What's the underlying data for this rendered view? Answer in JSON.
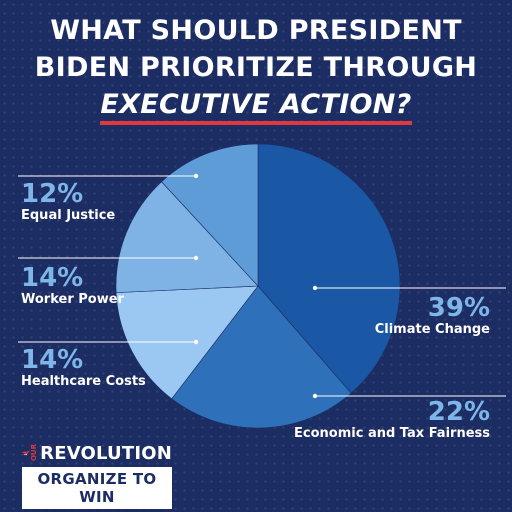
{
  "title": {
    "line1": "WHAT SHOULD PRESIDENT",
    "line2": "BIDEN PRIORITIZE THROUGH",
    "line3": "EXECUTIVE ACTION?"
  },
  "colors": {
    "background": "#1c2d63",
    "accent_underline": "#e0383e",
    "label_percent": "#7fb6e9"
  },
  "logo": {
    "our": "OUR",
    "name": "REVOLUTION",
    "tagline": "ORGANIZE TO WIN",
    "icon": "bird-icon"
  },
  "chart_data": {
    "type": "pie",
    "slices": [
      {
        "label": "Climate Change",
        "value": 39,
        "pct_text": "39%",
        "color": "#1a57a4"
      },
      {
        "label": "Economic and Tax Fairness",
        "value": 22,
        "pct_text": "22%",
        "color": "#2e70b9"
      },
      {
        "label": "Healthcare Costs",
        "value": 14,
        "pct_text": "14%",
        "color": "#9ac8f3"
      },
      {
        "label": "Worker Power",
        "value": 14,
        "pct_text": "14%",
        "color": "#7fb3e6"
      },
      {
        "label": "Equal Justice",
        "value": 12,
        "pct_text": "12%",
        "color": "#5e9cd8"
      }
    ],
    "start_angle_deg": 0,
    "direction": "clockwise"
  }
}
